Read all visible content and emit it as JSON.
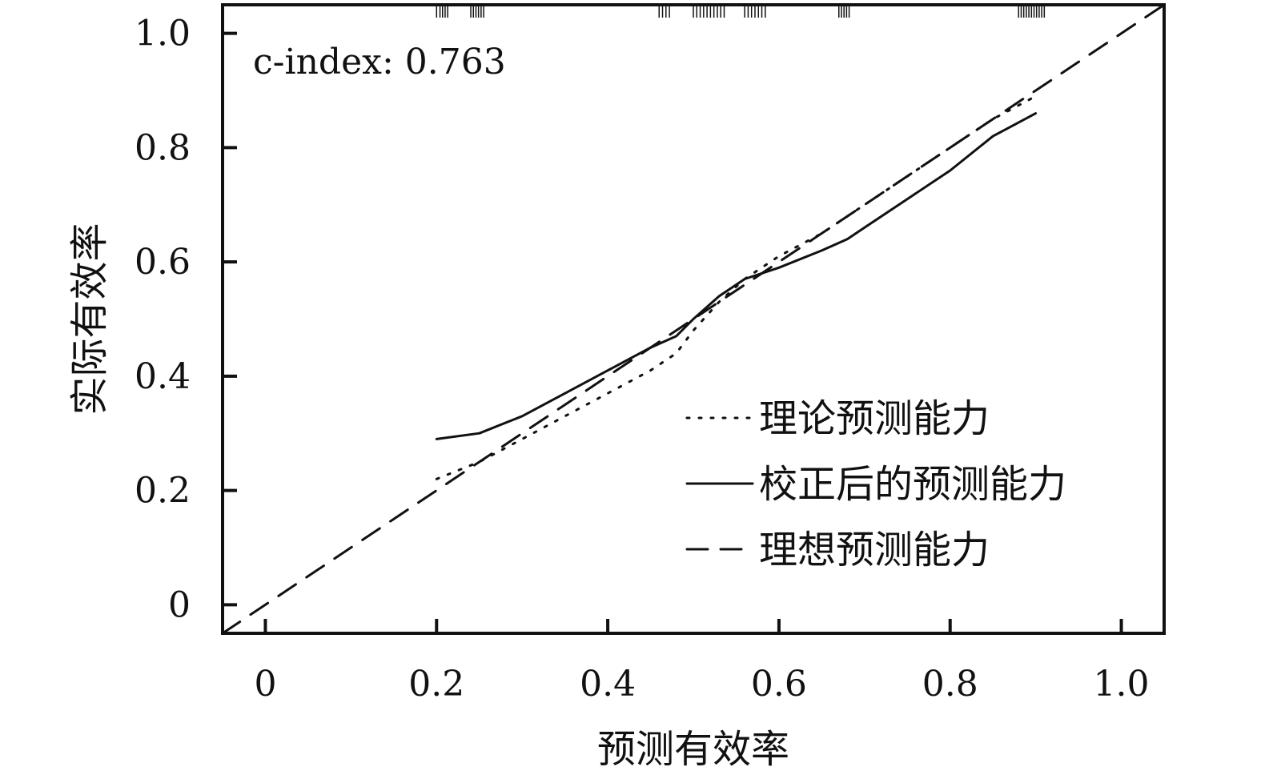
{
  "chart_data": {
    "type": "line",
    "title": "",
    "xlabel": "预测有效率",
    "ylabel": "实际有效率",
    "xlim": [
      -0.05,
      1.05
    ],
    "ylim": [
      -0.05,
      1.05
    ],
    "xticks": [
      0,
      0.2,
      0.4,
      0.6,
      0.8,
      1.0
    ],
    "xtick_labels": [
      "0",
      "0.2",
      "0.4",
      "0.6",
      "0.8",
      "1.0"
    ],
    "yticks": [
      0,
      0.2,
      0.4,
      0.6,
      0.8,
      1.0
    ],
    "ytick_labels": [
      "0",
      "0.2",
      "0.4",
      "0.6",
      "0.8",
      "1.0"
    ],
    "grid": false,
    "legend_position": "bottom-right",
    "annotation": "c-index: 0.763",
    "series": [
      {
        "name": "理论预测能力",
        "style": "dotted",
        "color": "#111111",
        "x": [
          0.2,
          0.25,
          0.3,
          0.35,
          0.4,
          0.45,
          0.48,
          0.5,
          0.53,
          0.56,
          0.6,
          0.65,
          0.7,
          0.75,
          0.8,
          0.85,
          0.9
        ],
        "y": [
          0.22,
          0.25,
          0.29,
          0.33,
          0.37,
          0.41,
          0.44,
          0.48,
          0.53,
          0.57,
          0.61,
          0.65,
          0.7,
          0.75,
          0.8,
          0.85,
          0.89
        ]
      },
      {
        "name": "校正后的预测能力",
        "style": "solid",
        "color": "#111111",
        "x": [
          0.2,
          0.25,
          0.3,
          0.35,
          0.4,
          0.45,
          0.48,
          0.5,
          0.53,
          0.56,
          0.6,
          0.65,
          0.68,
          0.7,
          0.75,
          0.8,
          0.85,
          0.9
        ],
        "y": [
          0.29,
          0.3,
          0.33,
          0.37,
          0.41,
          0.45,
          0.47,
          0.5,
          0.54,
          0.57,
          0.59,
          0.62,
          0.64,
          0.66,
          0.71,
          0.76,
          0.82,
          0.86
        ]
      },
      {
        "name": "理想预测能力",
        "style": "dashed",
        "color": "#111111",
        "x": [
          -0.05,
          1.05
        ],
        "y": [
          -0.05,
          1.05
        ]
      }
    ],
    "rug_x": [
      0.2,
      0.204,
      0.207,
      0.21,
      0.213,
      0.24,
      0.243,
      0.246,
      0.249,
      0.252,
      0.255,
      0.46,
      0.464,
      0.468,
      0.472,
      0.5,
      0.504,
      0.508,
      0.512,
      0.516,
      0.52,
      0.524,
      0.528,
      0.532,
      0.536,
      0.56,
      0.564,
      0.568,
      0.572,
      0.576,
      0.58,
      0.584,
      0.67,
      0.673,
      0.676,
      0.679,
      0.682,
      0.88,
      0.883,
      0.886,
      0.889,
      0.892,
      0.895,
      0.898,
      0.901,
      0.904,
      0.907,
      0.91
    ]
  }
}
